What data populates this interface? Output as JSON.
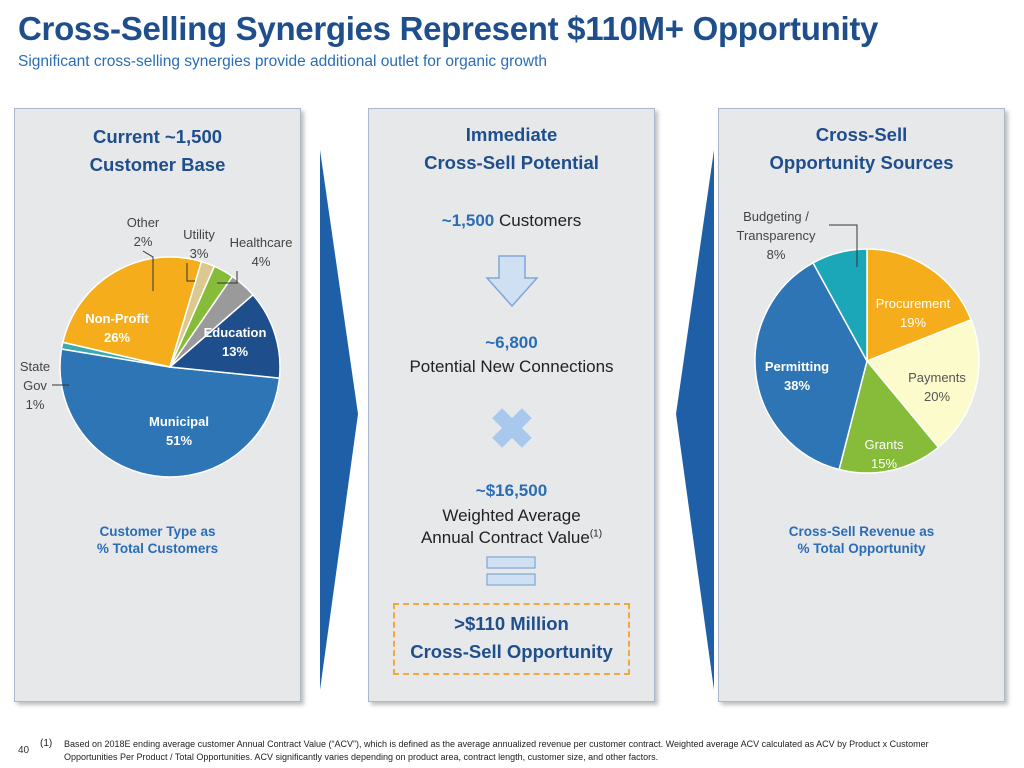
{
  "header": {
    "title": "Cross-Selling Synergies Represent $110M+ Opportunity",
    "subtitle": "Significant cross-selling synergies provide additional outlet for organic growth"
  },
  "panel_left": {
    "heading_line1": "Current ~1,500",
    "heading_line2": "Customer Base",
    "caption_line1": "Customer Type as",
    "caption_line2": "% Total Customers"
  },
  "panel_middle": {
    "heading_line1": "Immediate",
    "heading_line2": "Cross-Sell Potential",
    "customers_value": "~1,500",
    "customers_label": "Customers",
    "connections_value": "~6,800",
    "connections_label": "Potential New Connections",
    "acv_value": "~$16,500",
    "acv_label_line1": "Weighted Average",
    "acv_label_line2": "Annual Contract Value",
    "acv_footnote_ref": "(1)",
    "result_line1": ">$110 Million",
    "result_line2": "Cross-Sell Opportunity",
    "colors": {
      "arrow_fill": "#cfe0f3",
      "arrow_stroke": "#7fa7d6",
      "x_fill": "#a8c8ee",
      "eq_fill": "#cfe0f3"
    }
  },
  "panel_right": {
    "heading_line1": "Cross-Sell",
    "heading_line2": "Opportunity Sources",
    "caption_line1": "Cross-Sell Revenue as",
    "caption_line2": "% Total Opportunity"
  },
  "chart_data": [
    {
      "type": "pie",
      "title": "Customer Type as % Total Customers",
      "slices": [
        {
          "label": "Municipal",
          "value": 51,
          "text": "51%",
          "color": "#2e75b6"
        },
        {
          "label": "State Gov",
          "value": 1,
          "text": "1%",
          "color": "#3aaab0"
        },
        {
          "label": "Non-Profit",
          "value": 26,
          "text": "26%",
          "color": "#f6ad1c"
        },
        {
          "label": "Other",
          "value": 2,
          "text": "2%",
          "color": "#dcc98f"
        },
        {
          "label": "Utility",
          "value": 3,
          "text": "3%",
          "color": "#86bc3a"
        },
        {
          "label": "Healthcare",
          "value": 4,
          "text": "4%",
          "color": "#9a9a9a"
        },
        {
          "label": "Education",
          "value": 13,
          "text": "13%",
          "color": "#1f4e8c"
        }
      ]
    },
    {
      "type": "pie",
      "title": "Cross-Sell Revenue as % Total Opportunity",
      "slices": [
        {
          "label": "Procurement",
          "value": 19,
          "text": "19%",
          "color": "#f6ad1c"
        },
        {
          "label": "Payments",
          "value": 20,
          "text": "20%",
          "color": "#fbfbcc"
        },
        {
          "label": "Grants",
          "value": 15,
          "text": "15%",
          "color": "#86bc3a"
        },
        {
          "label": "Permitting",
          "value": 38,
          "text": "38%",
          "color": "#2e75b6"
        },
        {
          "label": "Budgeting / Transparency",
          "value": 8,
          "text": "8%",
          "color": "#1ba7b8"
        }
      ]
    }
  ],
  "footer": {
    "page_number": "40",
    "footnote_mark": "(1)",
    "footnote_text": "Based on 2018E ending average customer Annual Contract Value (“ACV”), which is defined as the average annualized revenue per customer contract. Weighted average ACV calculated as ACV by Product x Customer Opportunities Per Product / Total Opportunities. ACV significantly varies depending on product area, contract length, customer size, and other factors."
  },
  "colors": {
    "title": "#1f4e8c",
    "accent": "#2a6db5",
    "panel_bg": "#e7e8ea",
    "chevron": "#1f5fa8",
    "dash_border": "#f2a93b"
  }
}
